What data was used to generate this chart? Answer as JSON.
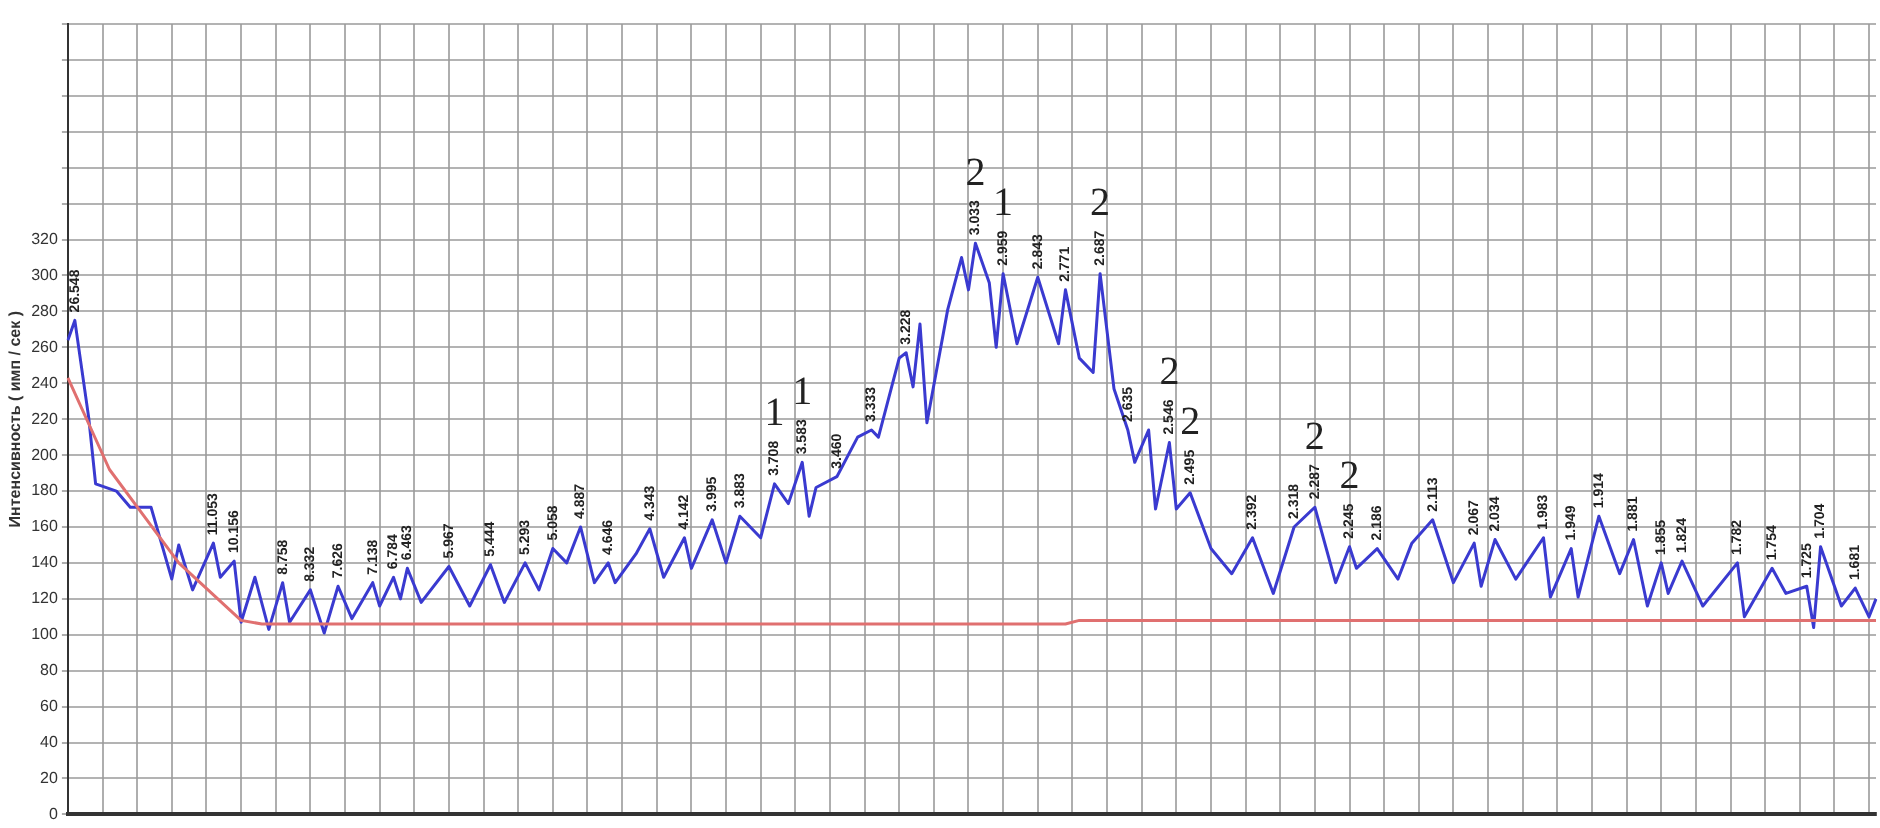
{
  "chart_data": {
    "type": "line",
    "ylabel": "Интенсивность ( имп / сек )",
    "categories": [
      null,
      null,
      null,
      null,
      null,
      null,
      null,
      null,
      null,
      null,
      null,
      null,
      null,
      null,
      null,
      null,
      null,
      null,
      null,
      null,
      null,
      null,
      null,
      null,
      null,
      null,
      null,
      null,
      null,
      null,
      null,
      null,
      null,
      null,
      null,
      null,
      null,
      null,
      null,
      null,
      null,
      null,
      null,
      null,
      null,
      null,
      null,
      null,
      null,
      null,
      null,
      null,
      null,
      null,
      null,
      null,
      null,
      null,
      null,
      null,
      null,
      null,
      null,
      null,
      null,
      null,
      null,
      null,
      null,
      null,
      null,
      null,
      null,
      null,
      null,
      null,
      null,
      null,
      null,
      null,
      null,
      null,
      null,
      null,
      null,
      null,
      null,
      null,
      null,
      null,
      null,
      null,
      null,
      null,
      null,
      null,
      null,
      null,
      null,
      null,
      null,
      null,
      null,
      null,
      null,
      null,
      null,
      null,
      null,
      null,
      null,
      null,
      null,
      null,
      null,
      null,
      null,
      null,
      null,
      null,
      null,
      null,
      null,
      null,
      null,
      null,
      null,
      null,
      null,
      null,
      null,
      null,
      null,
      null,
      null,
      null,
      null,
      null,
      null,
      null,
      null,
      null,
      null,
      null,
      null,
      null,
      null,
      null,
      null,
      null,
      null,
      null,
      null,
      null,
      null,
      null,
      null,
      null,
      null,
      null,
      null,
      null,
      null,
      null,
      null,
      null,
      null,
      null,
      null,
      null,
      null,
      null,
      null,
      null,
      null,
      null,
      null,
      null,
      null,
      null,
      null,
      null,
      null,
      null,
      null,
      null,
      null,
      null,
      null,
      null,
      null,
      null,
      null,
      null,
      null,
      null,
      null,
      null,
      null,
      null,
      null,
      null,
      null,
      null,
      null,
      null,
      null,
      null,
      null,
      null,
      null,
      null,
      null,
      null,
      null,
      null,
      null,
      null,
      null,
      null,
      null,
      null,
      null,
      null,
      null,
      null,
      null,
      null,
      null,
      null,
      null,
      null,
      null,
      null,
      null,
      null,
      null,
      null,
      null,
      null,
      null,
      null,
      null,
      null,
      null,
      null,
      null,
      null,
      null,
      null,
      null,
      null,
      null,
      null,
      null,
      null,
      null,
      null,
      null,
      null,
      null,
      null
    ],
    "ylim": [
      0,
      440
    ],
    "yticks": [
      0,
      20,
      40,
      60,
      80,
      100,
      120,
      140,
      160,
      180,
      200,
      220,
      240,
      260,
      280,
      300,
      320,
      {
        "value": 340,
        "label": null
      },
      {
        "value": 360,
        "label": null
      },
      {
        "value": 380,
        "label": null
      },
      {
        "value": 400,
        "label": null
      },
      {
        "value": 420,
        "label": null
      },
      {
        "value": 440,
        "label": null
      }
    ],
    "tick_labels": "y",
    "grid": true,
    "legend": false,
    "marker": "none",
    "line_style": "solid",
    "series": [
      {
        "color": "#3a3ad0",
        "values": [
          264,
          275,
          null,
          221,
          184,
          null,
          null,
          180,
          null,
          171,
          null,
          null,
          171,
          null,
          null,
          131,
          150,
          null,
          125,
          null,
          null,
          151,
          132,
          null,
          141,
          107,
          null,
          132,
          null,
          103,
          null,
          129,
          107,
          null,
          null,
          125,
          null,
          101,
          null,
          127,
          null,
          109,
          null,
          null,
          129,
          116,
          null,
          132,
          120,
          137,
          null,
          118,
          null,
          null,
          null,
          138,
          null,
          null,
          116,
          null,
          null,
          139,
          null,
          118,
          null,
          null,
          140,
          null,
          125,
          null,
          148,
          null,
          140,
          null,
          160,
          null,
          129,
          null,
          140,
          129,
          null,
          null,
          145,
          null,
          159,
          null,
          132,
          null,
          null,
          154,
          137,
          null,
          null,
          164,
          null,
          140,
          null,
          166,
          null,
          null,
          154,
          null,
          184,
          null,
          173,
          null,
          196,
          166,
          182,
          null,
          null,
          188,
          null,
          null,
          210,
          null,
          214,
          210,
          null,
          null,
          254,
          257,
          238,
          273,
          218,
          null,
          null,
          281,
          null,
          310,
          292,
          318,
          null,
          296,
          260,
          301,
          null,
          262,
          null,
          null,
          299,
          null,
          null,
          262,
          292,
          null,
          254,
          null,
          246,
          301,
          null,
          237,
          null,
          214,
          196,
          null,
          214,
          170,
          null,
          207,
          170,
          null,
          179,
          null,
          null,
          148,
          null,
          null,
          134,
          null,
          null,
          154,
          null,
          null,
          123,
          null,
          null,
          160,
          null,
          null,
          171,
          null,
          null,
          129,
          null,
          149,
          137,
          null,
          null,
          148,
          null,
          null,
          131,
          null,
          151,
          null,
          null,
          164,
          null,
          null,
          129,
          null,
          null,
          151,
          127,
          null,
          153,
          null,
          null,
          131,
          null,
          null,
          null,
          154,
          121,
          null,
          null,
          148,
          121,
          null,
          null,
          166,
          null,
          null,
          134,
          null,
          153,
          null,
          116,
          null,
          140,
          123,
          null,
          141,
          null,
          null,
          116,
          null,
          null,
          null,
          null,
          140,
          110,
          null,
          null,
          null,
          137,
          null,
          123,
          null,
          null,
          127,
          104,
          149,
          null,
          null,
          116,
          null,
          126,
          null,
          110,
          120
        ]
      },
      {
        "color": "#e07070",
        "values": [
          243,
          null,
          null,
          null,
          null,
          null,
          192,
          null,
          null,
          null,
          null,
          null,
          null,
          null,
          null,
          null,
          140,
          null,
          null,
          null,
          null,
          null,
          null,
          null,
          null,
          108,
          null,
          null,
          106,
          null,
          null,
          null,
          null,
          null,
          null,
          null,
          null,
          null,
          null,
          null,
          null,
          null,
          null,
          null,
          null,
          null,
          null,
          null,
          null,
          null,
          null,
          null,
          null,
          null,
          null,
          null,
          null,
          null,
          null,
          null,
          null,
          null,
          null,
          null,
          null,
          null,
          null,
          null,
          null,
          null,
          null,
          null,
          null,
          null,
          null,
          null,
          null,
          null,
          null,
          null,
          null,
          null,
          null,
          null,
          null,
          null,
          null,
          null,
          null,
          null,
          null,
          null,
          null,
          null,
          null,
          null,
          null,
          null,
          null,
          null,
          null,
          null,
          null,
          null,
          null,
          null,
          null,
          null,
          null,
          null,
          null,
          null,
          null,
          null,
          null,
          null,
          null,
          null,
          null,
          null,
          null,
          null,
          null,
          null,
          null,
          null,
          null,
          null,
          null,
          null,
          null,
          null,
          null,
          null,
          null,
          null,
          null,
          null,
          null,
          null,
          null,
          null,
          null,
          null,
          106,
          null,
          108,
          null,
          null,
          null,
          null,
          null,
          null,
          null,
          null,
          null,
          null,
          null,
          null,
          null,
          null,
          null,
          null,
          null,
          null,
          null,
          null,
          null,
          null,
          null,
          null,
          null,
          null,
          null,
          null,
          null,
          null,
          null,
          null,
          null,
          null,
          null,
          null,
          null,
          null,
          null,
          null,
          null,
          null,
          null,
          null,
          null,
          null,
          null,
          null,
          null,
          null,
          null,
          null,
          null,
          null,
          null,
          null,
          null,
          null,
          null,
          null,
          null,
          null,
          null,
          null,
          null,
          null,
          null,
          null,
          null,
          null,
          null,
          null,
          null,
          null,
          null,
          null,
          null,
          null,
          null,
          null,
          null,
          null,
          null,
          null,
          null,
          null,
          null,
          null,
          null,
          null,
          null,
          null,
          null,
          null,
          null,
          null,
          null,
          null,
          null,
          null,
          null,
          null,
          null,
          null,
          null,
          null,
          null,
          null,
          null,
          null,
          null,
          null,
          null,
          null,
          108
        ]
      }
    ],
    "annotations": [
      {
        "text": "26.548",
        "y": 275
      },
      {
        "text": "11.053",
        "y": 151
      },
      {
        "text": "10.156",
        "y": 141
      },
      {
        "text": "8.758",
        "y": 129
      },
      {
        "text": "8.332",
        "y": 125
      },
      {
        "text": "7.626",
        "y": 127
      },
      {
        "text": "7.138",
        "y": 129
      },
      {
        "text": "6.784",
        "y": 132
      },
      {
        "text": "6.463",
        "y": 137
      },
      {
        "text": "5.967",
        "y": 138
      },
      {
        "text": "5.444",
        "y": 139
      },
      {
        "text": "5.293",
        "y": 140
      },
      {
        "text": "5.058",
        "y": 148
      },
      {
        "text": "4.887",
        "y": 160
      },
      {
        "text": "4.646",
        "y": 140
      },
      {
        "text": "4.343",
        "y": 159
      },
      {
        "text": "4.142",
        "y": 154
      },
      {
        "text": "3.995",
        "y": 164
      },
      {
        "text": "3.883",
        "y": 166
      },
      {
        "text": "3.708",
        "y": 184
      },
      "1",
      {
        "text": "3.583",
        "y": 196
      },
      "1",
      {
        "text": "3.460",
        "y": 188
      },
      {
        "text": "3.333",
        "y": 214
      },
      {
        "text": "3.228",
        "y": 257
      },
      {
        "text": "3.033",
        "y": 318
      },
      "2",
      {
        "text": "2.959",
        "y": 301
      },
      "1",
      {
        "text": "2.843",
        "y": 299
      },
      {
        "text": "2.771",
        "y": 292
      },
      {
        "text": "2.687",
        "y": 301
      },
      "2",
      {
        "text": "2.635",
        "y": 214
      },
      {
        "text": "2.546",
        "y": 207
      },
      "2",
      {
        "text": "2.495",
        "y": 179
      },
      "2",
      {
        "text": "2.392",
        "y": 154
      },
      {
        "text": "2.318",
        "y": 160
      },
      {
        "text": "2.287",
        "y": 171
      },
      "2",
      {
        "text": "2.245",
        "y": 149
      },
      "2",
      {
        "text": "2.186",
        "y": 148
      },
      {
        "text": "2.113",
        "y": 164
      },
      {
        "text": "2.067",
        "y": 151
      },
      {
        "text": "2.034",
        "y": 153
      },
      {
        "text": "1.983",
        "y": 154
      },
      {
        "text": "1.949",
        "y": 148
      },
      {
        "text": "1.914",
        "y": 166
      },
      {
        "text": "1.881",
        "y": 153
      },
      {
        "text": "1.855",
        "y": 140
      },
      {
        "text": "1.824",
        "y": 141
      },
      {
        "text": "1.782",
        "y": 140
      },
      {
        "text": "1.754",
        "y": 137
      },
      {
        "text": "1.725",
        "y": 127
      },
      {
        "text": "1.704",
        "y": 149
      },
      {
        "text": "1.681",
        "y": 126
      }
    ]
  }
}
